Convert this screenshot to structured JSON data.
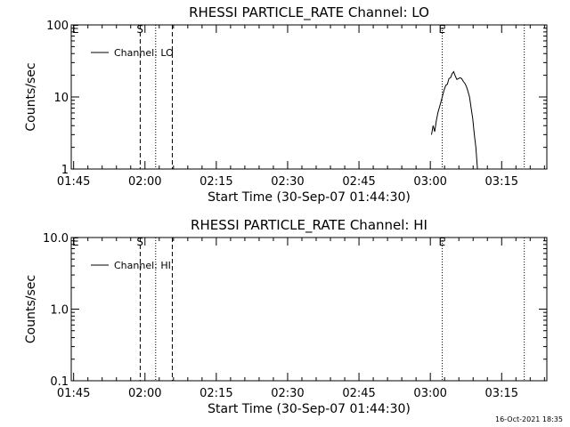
{
  "footer": {
    "timestamp": "16-Oct-2021 18:35"
  },
  "chart_data": [
    {
      "type": "line",
      "title": "RHESSI PARTICLE_RATE Channel: LO",
      "xlabel": "Start Time (30-Sep-07 01:44:30)",
      "ylabel": "Counts/sec",
      "y_scale": "log",
      "ylim": [
        1,
        100
      ],
      "xlim": [
        "01:44:30",
        "03:24:30"
      ],
      "x_ticks": [
        "01:45",
        "02:00",
        "02:15",
        "02:30",
        "02:45",
        "03:00",
        "03:15"
      ],
      "y_ticks": [
        "1",
        "10",
        "100"
      ],
      "legend": {
        "position": "top-left",
        "entries": [
          "Channel: LO"
        ]
      },
      "markers": [
        {
          "label": "E",
          "x": "01:44:30",
          "style": "none"
        },
        {
          "label": "S",
          "x": "01:59:00",
          "style": "dashed"
        },
        {
          "label": "",
          "x": "02:02:15",
          "style": "dotted"
        },
        {
          "label": "",
          "x": "02:05:45",
          "style": "dashed"
        },
        {
          "label": "E",
          "x": "03:02:30",
          "style": "dotted"
        },
        {
          "label": "",
          "x": "03:19:45",
          "style": "dotted"
        }
      ],
      "series": [
        {
          "name": "Channel: LO",
          "x": [
            "03:00:15",
            "03:00:35",
            "03:00:55",
            "03:01:15",
            "03:01:35",
            "03:01:55",
            "03:02:15",
            "03:02:35",
            "03:02:55",
            "03:03:15",
            "03:03:35",
            "03:03:55",
            "03:04:15",
            "03:04:35",
            "03:04:55",
            "03:05:15",
            "03:05:35",
            "03:05:55",
            "03:06:15",
            "03:06:35",
            "03:06:55",
            "03:07:15",
            "03:07:35",
            "03:07:55",
            "03:08:15",
            "03:08:35",
            "03:08:55",
            "03:09:15",
            "03:09:35",
            "03:09:55"
          ],
          "values": [
            3.0,
            4.0,
            3.3,
            4.6,
            6.0,
            7.2,
            8.6,
            10.5,
            12.6,
            14.5,
            15.0,
            18.0,
            18.5,
            21.0,
            22.5,
            19.5,
            17.5,
            18.0,
            18.5,
            18.0,
            16.5,
            15.5,
            14.0,
            12.0,
            10.0,
            7.0,
            5.0,
            3.0,
            2.0,
            1.0
          ]
        }
      ]
    },
    {
      "type": "line",
      "title": "RHESSI PARTICLE_RATE Channel: HI",
      "xlabel": "Start Time (30-Sep-07 01:44:30)",
      "ylabel": "Counts/sec",
      "y_scale": "log",
      "ylim": [
        0.1,
        10
      ],
      "xlim": [
        "01:44:30",
        "03:24:30"
      ],
      "x_ticks": [
        "01:45",
        "02:00",
        "02:15",
        "02:30",
        "02:45",
        "03:00",
        "03:15"
      ],
      "y_ticks": [
        "0.1",
        "1.0",
        "10.0"
      ],
      "legend": {
        "position": "top-left",
        "entries": [
          "Channel: HI"
        ]
      },
      "markers": [
        {
          "label": "E",
          "x": "01:44:30",
          "style": "none"
        },
        {
          "label": "S",
          "x": "01:59:00",
          "style": "dashed"
        },
        {
          "label": "",
          "x": "02:02:15",
          "style": "dotted"
        },
        {
          "label": "",
          "x": "02:05:45",
          "style": "dashed"
        },
        {
          "label": "E",
          "x": "03:02:30",
          "style": "dotted"
        },
        {
          "label": "",
          "x": "03:19:45",
          "style": "dotted"
        }
      ],
      "series": [
        {
          "name": "Channel: HI",
          "x": [],
          "values": []
        }
      ]
    }
  ]
}
